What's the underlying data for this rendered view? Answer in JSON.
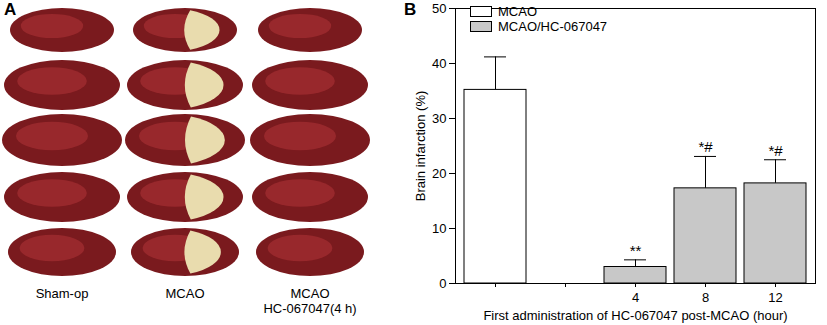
{
  "panel_a": {
    "label": "A",
    "columns": [
      "Sham-op",
      "MCAO",
      "MCAO\nHC-067047(4 h)"
    ]
  },
  "chart_data": {
    "type": "bar",
    "panel_label": "B",
    "y_label": "Brain infarction (%)",
    "x_label": "First administration of HC-067047 post-MCAO (hour)",
    "categories": [
      null,
      null,
      "4",
      "8",
      "12"
    ],
    "series": [
      {
        "name": "MCAO",
        "color": "#ffffff",
        "values": [
          35.2,
          null,
          null,
          null,
          null
        ],
        "errors": [
          6,
          null,
          null,
          null,
          null
        ],
        "annotations": [
          null,
          null,
          null,
          null,
          null
        ]
      },
      {
        "name": "MCAO/HC-067047",
        "color": "#c8c8c8",
        "values": [
          null,
          null,
          3,
          17.3,
          18.2
        ],
        "errors": [
          null,
          null,
          1.3,
          5.8,
          4.3
        ],
        "annotations": [
          null,
          null,
          "**",
          "*#",
          "*#"
        ]
      }
    ],
    "ylim": [
      0,
      50
    ],
    "yticks": [
      0,
      10,
      20,
      30,
      40,
      50
    ],
    "grid": false,
    "legend": "top-left"
  }
}
